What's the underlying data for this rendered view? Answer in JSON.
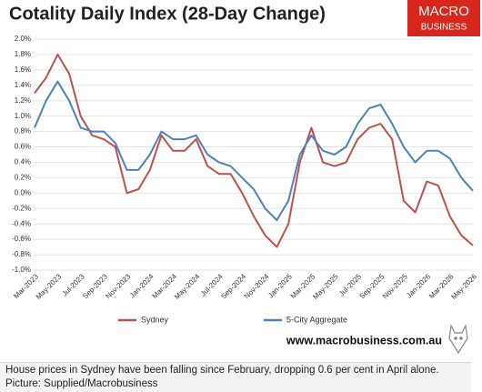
{
  "chart_data": {
    "type": "line",
    "title": "Cotality Daily Index (28-Day Change)",
    "logo": [
      "MACRO",
      "BUSINESS"
    ],
    "website": "www.macrobusiness.com.au",
    "caption": "House prices in Sydney have been falling since February, dropping 0.6 per cent in April alone. Picture: Supplied/Macrobusiness",
    "categories": [
      "Mar-2023",
      null,
      "May-2023",
      null,
      "Jul-2023",
      null,
      "Sep-2023",
      null,
      "Nov-2023",
      null,
      "Jan-2024",
      null,
      "Mar-2024",
      null,
      "May-2024",
      null,
      "Jul-2024",
      null,
      "Sep-2024",
      null,
      "Nov-2024",
      null,
      "Jan-2025",
      null,
      "Mar-2025",
      null,
      "May-2025",
      null,
      "Jul-2025",
      null,
      "Sep-2025",
      null,
      "Nov-2025",
      null,
      "Jan-2026",
      null,
      "Mar-2026",
      null,
      "May-2026"
    ],
    "series": [
      {
        "name": "Sydney",
        "color": "#c0504d",
        "values": [
          1.3,
          1.5,
          1.8,
          1.55,
          1.0,
          0.75,
          0.7,
          0.6,
          0.0,
          0.05,
          0.3,
          0.75,
          0.55,
          0.55,
          0.7,
          0.35,
          0.25,
          0.25,
          0.0,
          -0.3,
          -0.55,
          -0.7,
          -0.4,
          0.4,
          0.85,
          0.4,
          0.35,
          0.4,
          0.7,
          0.85,
          0.9,
          0.7,
          -0.1,
          -0.25,
          0.15,
          0.1,
          -0.3,
          -0.55,
          -0.68
        ]
      },
      {
        "name": "5-City Aggregate",
        "color": "#4f81bd",
        "values": [
          0.85,
          1.2,
          1.45,
          1.2,
          0.85,
          0.8,
          0.8,
          0.65,
          0.3,
          0.3,
          0.5,
          0.8,
          0.7,
          0.7,
          0.75,
          0.5,
          0.4,
          0.35,
          0.2,
          0.05,
          -0.2,
          -0.35,
          -0.1,
          0.5,
          0.75,
          0.55,
          0.5,
          0.6,
          0.9,
          1.1,
          1.15,
          0.9,
          0.6,
          0.4,
          0.55,
          0.55,
          0.45,
          0.2,
          0.03
        ]
      }
    ],
    "ylim": [
      -1.0,
      2.0
    ],
    "yticks": [
      {
        "value": 2.0,
        "label": "2.0%"
      },
      {
        "value": 1.8,
        "label": "1.8%"
      },
      {
        "value": 1.6,
        "label": "1.6%"
      },
      {
        "value": 1.4,
        "label": "1.4%"
      },
      {
        "value": 1.2,
        "label": "1.2%"
      },
      {
        "value": 1.0,
        "label": "1.0%"
      },
      {
        "value": 0.8,
        "label": "0.8%"
      },
      {
        "value": 0.6,
        "label": "0.6%"
      },
      {
        "value": 0.4,
        "label": "0.4%"
      },
      {
        "value": 0.2,
        "label": "0.2%"
      },
      {
        "value": 0.0,
        "label": "0.0%"
      },
      {
        "value": -0.2,
        "label": "-0.2%"
      },
      {
        "value": -0.4,
        "label": "-0.4%"
      },
      {
        "value": -0.6,
        "label": "-0.6%"
      },
      {
        "value": -0.8,
        "label": "-0.8%"
      },
      {
        "value": -1.0,
        "label": "-1.0%"
      }
    ],
    "grid": true
  }
}
